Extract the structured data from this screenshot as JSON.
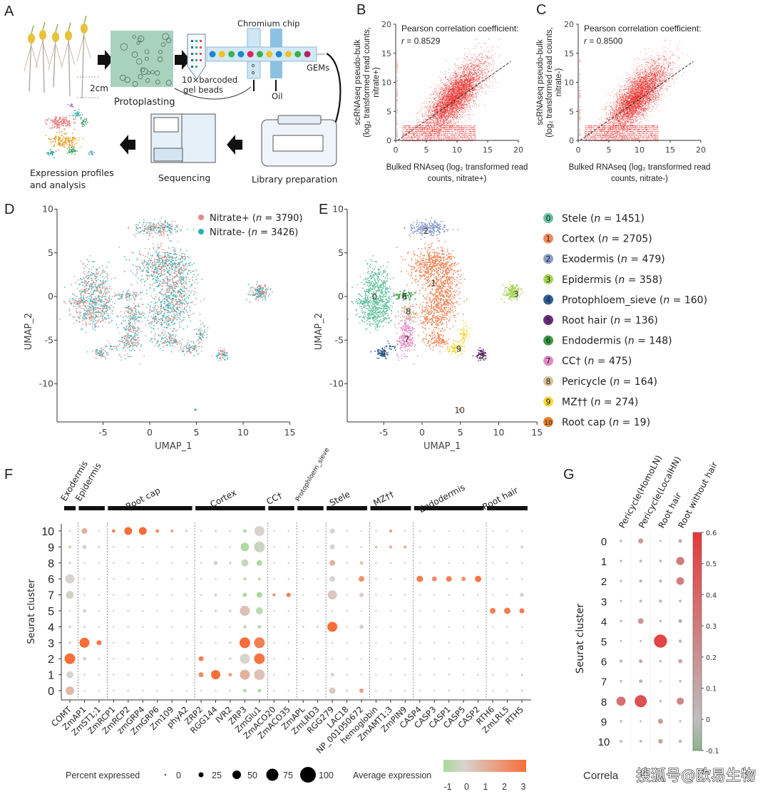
{
  "panel_labels": {
    "a": "A",
    "b": "B",
    "c": "C",
    "d": "D",
    "e": "E",
    "f": "F",
    "g": "G"
  },
  "panel_a": {
    "scale_label": "2cm",
    "protoplasting": "Protoplasting",
    "beads_line1": "10×barcoded",
    "beads_line2": "gel beads",
    "chip": "Chromium chip",
    "gems": "GEMs",
    "oil": "Oil",
    "library": "Library preparation",
    "sequencing": "Sequencing",
    "analysis_line1": "Expression profiles",
    "analysis_line2": "and analysis"
  },
  "chart_data": [
    {
      "panel": "B",
      "type": "scatter",
      "annotation_title": "Pearson correlation coefficient:",
      "r_symbol": "r",
      "r_value": "= 0.8529",
      "xlabel": [
        "Bulked RNAseq (log₂ transformed read",
        "counts, nitrate+)"
      ],
      "ylabel": [
        "scRNAseq pseudo-bulk",
        "(log₂ transformed read counts,",
        "nitrate+)"
      ],
      "xlim": [
        0,
        20
      ],
      "ylim": [
        0,
        20
      ],
      "xticks": [
        0,
        5,
        10,
        15,
        20
      ],
      "yticks": [
        0,
        5,
        10,
        15,
        20
      ],
      "point_color": "#e8201e",
      "reference_line": "dashed diagonal",
      "grid": false
    },
    {
      "panel": "C",
      "type": "scatter",
      "annotation_title": "Pearson correlation coefficient:",
      "r_symbol": "r",
      "r_value": "= 0.8500",
      "xlabel": [
        "Bulked RNAseq (log₂ transformed read",
        "counts, nitrate-)"
      ],
      "ylabel": [
        "scRNAseq pseudo-bulk",
        "(log₂ transformed read counts,",
        "nitrate-)"
      ],
      "xlim": [
        0,
        20
      ],
      "ylim": [
        0,
        20
      ],
      "xticks": [
        0,
        5,
        10,
        15,
        20
      ],
      "yticks": [
        0,
        5,
        10,
        15,
        20
      ],
      "point_color": "#e8201e",
      "reference_line": "dashed diagonal",
      "grid": false
    },
    {
      "panel": "D",
      "type": "scatter",
      "xlabel": "UMAP_1",
      "ylabel": "UMAP_2",
      "xticks": [
        -5,
        0,
        5,
        10,
        15
      ],
      "yticks": [
        10,
        5,
        0,
        -5,
        -10
      ],
      "legend_position": "top-right",
      "series": [
        {
          "name": "Nitrate+",
          "n": 3790,
          "color": "#e48a86"
        },
        {
          "name": "Nitrate-",
          "n": 3426,
          "color": "#27b3b3"
        }
      ]
    },
    {
      "panel": "E",
      "type": "scatter",
      "xlabel": "UMAP_1",
      "ylabel": "UMAP_2",
      "xticks": [
        -5,
        0,
        5,
        10,
        15
      ],
      "yticks": [
        10,
        5,
        0,
        -5,
        -10
      ],
      "legend_position": "right",
      "clusters": [
        {
          "id": "0",
          "name": "Stele",
          "n": 1451,
          "color": "#66c2a0"
        },
        {
          "id": "1",
          "name": "Cortex",
          "n": 2705,
          "color": "#f08a5c"
        },
        {
          "id": "2",
          "name": "Exodermis",
          "n": 479,
          "color": "#8c9fcb"
        },
        {
          "id": "3",
          "name": "Epidermis",
          "n": 358,
          "color": "#a5d452"
        },
        {
          "id": "4",
          "name": "Protophloem_sieve",
          "n": 160,
          "color": "#2d5f96"
        },
        {
          "id": "5",
          "name": "Root hair",
          "n": 136,
          "color": "#6b2d7c"
        },
        {
          "id": "6",
          "name": "Endodermis",
          "n": 148,
          "color": "#3b9a48"
        },
        {
          "id": "7",
          "name": "CC†",
          "n": 475,
          "color": "#e48ac4"
        },
        {
          "id": "8",
          "name": "Pericycle",
          "n": 164,
          "color": "#d6c29a"
        },
        {
          "id": "9",
          "name": "MZ††",
          "n": 274,
          "color": "#f4d63a"
        },
        {
          "id": "10",
          "name": "Root cap",
          "n": 19,
          "color": "#e5812e"
        }
      ]
    },
    {
      "panel": "F",
      "type": "dotplot",
      "ylabel": "Seurat cluster",
      "row_order": [
        "10",
        "9",
        "8",
        "6",
        "7",
        "5",
        "4",
        "3",
        "2",
        "1",
        "0"
      ],
      "groups": [
        {
          "name": "Exodermis",
          "genes": [
            "COMT"
          ]
        },
        {
          "name": "Epidermis",
          "genes": [
            "ZmAP1",
            "ZmST1;1"
          ]
        },
        {
          "name": "Root cap",
          "genes": [
            "ZmRCP1",
            "ZmRCP2",
            "zmGRP4",
            "ZmGRP6",
            "Zm109",
            "phyA2"
          ]
        },
        {
          "name": "Cortex",
          "genes": [
            "ZRP2",
            "RGG144",
            "IVR2",
            "ZRP3",
            "ZmGlu1"
          ]
        },
        {
          "name": "CC†",
          "genes": [
            "ZmACO20",
            "ZmACO35"
          ]
        },
        {
          "name": "Protophloem_sieve",
          "genes": [
            "ZmAPL",
            "ZmLRD3"
          ]
        },
        {
          "name": "Stele",
          "genes": [
            "RGG279",
            "LAC18",
            "NP_001050672"
          ]
        },
        {
          "name": "MZ††",
          "genes": [
            "hemoglobin",
            "ZmAMT1;3",
            "ZmPIN9"
          ]
        },
        {
          "name": "Endodermis",
          "genes": [
            "CASP4",
            "CASP3",
            "CASP1",
            "CASP5",
            "CASP2"
          ]
        },
        {
          "name": "Root hair",
          "genes": [
            "RTH6",
            "ZmLRL5",
            "RTH5"
          ]
        }
      ],
      "value_format": "cluster: [percent_expressed, average_expression]",
      "background_value": [
        3,
        0
      ],
      "values": {
        "COMT": {
          "10": [
            5,
            0
          ],
          "9": [
            10,
            -0.6
          ],
          "8": [
            8,
            0
          ],
          "6": [
            55,
            0
          ],
          "7": [
            45,
            -0.2
          ],
          "4": [
            8,
            0
          ],
          "3": [
            8,
            0
          ],
          "2": [
            65,
            3
          ],
          "1": [
            40,
            0
          ],
          "0": [
            50,
            0.8
          ]
        },
        "ZmAP1": {
          "10": [
            30,
            1
          ],
          "9": [
            20,
            0
          ],
          "5": [
            15,
            0
          ],
          "4": [
            6,
            0
          ],
          "3": [
            60,
            3
          ],
          "2": [
            15,
            0
          ]
        },
        "ZmST1;1": {
          "9": [
            6,
            0
          ],
          "3": [
            25,
            2.8
          ]
        },
        "ZmRCP1": {
          "10": [
            15,
            2
          ]
        },
        "ZmRCP2": {
          "10": [
            45,
            3
          ]
        },
        "zmGRP4": {
          "10": [
            45,
            3
          ]
        },
        "ZmGRP6": {
          "10": [
            15,
            2
          ]
        },
        "Zm109": {
          "10": [
            10,
            1.5
          ]
        },
        "phyA2": {
          "10": [
            5,
            0.5
          ]
        },
        "ZRP2": {
          "2": [
            25,
            2.5
          ],
          "1": [
            25,
            2
          ]
        },
        "RGG144": {
          "10": [
            6,
            0
          ],
          "8": [
            20,
            0
          ],
          "7": [
            10,
            0
          ],
          "5": [
            8,
            0
          ],
          "1": [
            55,
            3
          ]
        },
        "IVR2": {
          "8": [
            8,
            0
          ],
          "5": [
            8,
            0
          ],
          "3": [
            8,
            0
          ],
          "2": [
            8,
            0
          ],
          "1": [
            15,
            1.5
          ]
        },
        "ZRP3": {
          "10": [
            15,
            -0.8
          ],
          "9": [
            50,
            -0.8
          ],
          "8": [
            40,
            -0.3
          ],
          "6": [
            12,
            -0.5
          ],
          "7": [
            20,
            -0.8
          ],
          "5": [
            60,
            0.5
          ],
          "4": [
            12,
            -0.8
          ],
          "3": [
            65,
            3
          ],
          "2": [
            60,
            0
          ],
          "1": [
            60,
            1
          ],
          "0": [
            15,
            -0.8
          ]
        },
        "ZmGlu1": {
          "10": [
            60,
            0
          ],
          "9": [
            65,
            -0.3
          ],
          "8": [
            30,
            -0.8
          ],
          "6": [
            10,
            -0.5
          ],
          "7": [
            30,
            -1
          ],
          "5": [
            40,
            -0.5
          ],
          "4": [
            15,
            -0.5
          ],
          "3": [
            65,
            2.5
          ],
          "2": [
            65,
            2.8
          ],
          "1": [
            65,
            0.5
          ],
          "0": [
            15,
            -0.8
          ]
        },
        "ZmACO20": {
          "7": [
            10,
            2
          ]
        },
        "ZmACO35": {
          "7": [
            20,
            2.5
          ]
        },
        "ZmAPL": {
          "4": [
            5,
            0
          ]
        },
        "ZmLRD3": {
          "4": [
            5,
            0
          ]
        },
        "RGG279": {
          "10": [
            25,
            0
          ],
          "9": [
            25,
            0
          ],
          "8": [
            30,
            1
          ],
          "6": [
            30,
            0
          ],
          "7": [
            55,
            0.3
          ],
          "4": [
            60,
            3
          ],
          "1": [
            15,
            0
          ],
          "0": [
            35,
            0.3
          ]
        },
        "LAC18": {
          "0": [
            6,
            0
          ]
        },
        "NP_001050672": {
          "8": [
            15,
            0.5
          ],
          "6": [
            30,
            2
          ],
          "7": [
            20,
            0.2
          ],
          "4": [
            20,
            0
          ],
          "0": [
            20,
            1.5
          ]
        },
        "hemoglobin": {
          "9": [
            6,
            1
          ]
        },
        "ZmAMT1;3": {
          "10": [
            12,
            1.5
          ],
          "9": [
            12,
            1
          ]
        },
        "ZmPIN9": {
          "9": [
            12,
            1
          ]
        },
        "CASP4": {
          "6": [
            35,
            2.5
          ]
        },
        "CASP3": {
          "6": [
            25,
            2
          ]
        },
        "CASP1": {
          "6": [
            30,
            2.5
          ]
        },
        "CASP5": {
          "6": [
            20,
            2
          ]
        },
        "CASP2": {
          "6": [
            35,
            2.8
          ]
        },
        "RTH6": {
          "5": [
            30,
            2.5
          ]
        },
        "ZmLRL5": {
          "5": [
            35,
            2.5
          ]
        },
        "RTH5": {
          "9": [
            10,
            0
          ],
          "7": [
            20,
            0
          ],
          "5": [
            25,
            2.5
          ],
          "1": [
            6,
            0
          ],
          "0": [
            6,
            0
          ]
        }
      },
      "size_legend_title": "Percent expressed",
      "size_legend": [
        0,
        25,
        50,
        75,
        100
      ],
      "color_legend_title": "Average expression",
      "color_ticks": [
        -1,
        0,
        1,
        2,
        3
      ],
      "color_scale": [
        "#a8da98",
        "#d7d3cf",
        "#f76e38"
      ]
    },
    {
      "panel": "G",
      "type": "dotplot",
      "ylabel": "Seurat cluster",
      "xlabel_visible": "Correla",
      "columns": [
        "Pericycle(HomoLN)",
        "Pericycle(LocalHN)",
        "Root hair",
        "Root without hair"
      ],
      "rows": [
        "0",
        "1",
        "2",
        "3",
        "4",
        "5",
        "6",
        "7",
        "8",
        "9",
        "10"
      ],
      "values": [
        [
          0.02,
          0.15,
          0.0,
          0.08
        ],
        [
          0.02,
          0.03,
          0.03,
          0.3
        ],
        [
          0.01,
          0.05,
          0.05,
          0.28
        ],
        [
          0.01,
          0.03,
          0.05,
          0.03
        ],
        [
          0.02,
          0.18,
          0.02,
          0.08
        ],
        [
          0.0,
          0.0,
          0.55,
          0.05
        ],
        [
          0.05,
          0.08,
          0.02,
          0.1
        ],
        [
          0.02,
          0.07,
          0.0,
          0.02
        ],
        [
          0.35,
          0.5,
          0.02,
          0.25
        ],
        [
          0.02,
          0.0,
          0.15,
          0.01
        ],
        [
          0.03,
          0.03,
          0.12,
          0.05
        ]
      ],
      "colorbar_ticks": [
        0.6,
        0.5,
        0.4,
        0.3,
        0.2,
        0.1,
        0,
        -0.1
      ],
      "color_scale": [
        "#8db38d",
        "#bdbdbd",
        "#e6393a"
      ]
    }
  ],
  "watermark": "搜狐号@欧易生物"
}
